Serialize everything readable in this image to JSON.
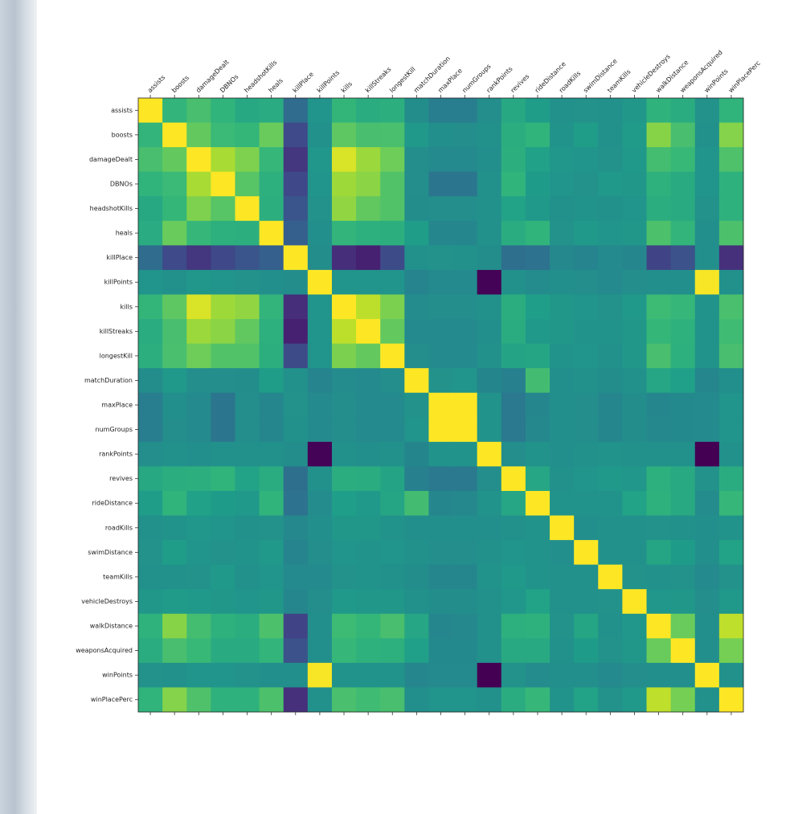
{
  "chart_data": {
    "type": "heatmap",
    "colormap": "viridis",
    "categories": [
      "assists",
      "boosts",
      "damageDealt",
      "DBNOs",
      "headshotKills",
      "heals",
      "killPlace",
      "killPoints",
      "kills",
      "killStreaks",
      "longestKill",
      "matchDuration",
      "maxPlace",
      "numGroups",
      "rankPoints",
      "revives",
      "rideDistance",
      "roadKills",
      "swimDistance",
      "teamKills",
      "vehicleDestroys",
      "walkDistance",
      "weaponsAcquired",
      "winPoints",
      "winPlacePerc"
    ],
    "values": [
      [
        1,
        0.31,
        0.41,
        0.3,
        0.2,
        0.23,
        -0.29,
        0.04,
        0.32,
        0.24,
        0.26,
        -0.02,
        -0.15,
        -0.14,
        -0.01,
        0.2,
        0.11,
        0.01,
        0.02,
        0.01,
        0.06,
        0.29,
        0.24,
        0.02,
        0.3
      ],
      [
        0.31,
        1,
        0.52,
        0.36,
        0.33,
        0.54,
        -0.55,
        0.01,
        0.5,
        0.41,
        0.42,
        0.07,
        0,
        -0.01,
        0.01,
        0.25,
        0.3,
        0.03,
        0.11,
        0.01,
        0.09,
        0.64,
        0.41,
        0.01,
        0.63
      ],
      [
        0.41,
        0.52,
        1,
        0.74,
        0.61,
        0.34,
        -0.68,
        0.05,
        0.89,
        0.7,
        0.56,
        -0.01,
        -0.04,
        -0.04,
        0,
        0.26,
        0.14,
        0.05,
        0.04,
        0.02,
        0.08,
        0.4,
        0.35,
        0.04,
        0.44
      ],
      [
        0.3,
        0.36,
        0.74,
        1,
        0.47,
        0.27,
        -0.56,
        0.04,
        0.71,
        0.65,
        0.45,
        -0.01,
        -0.22,
        -0.22,
        0.01,
        0.3,
        0.1,
        0.04,
        0.02,
        0.07,
        0.06,
        0.28,
        0.22,
        0.04,
        0.28
      ],
      [
        0.2,
        0.33,
        0.61,
        0.47,
        1,
        0.26,
        -0.47,
        0.02,
        0.67,
        0.51,
        0.45,
        -0.02,
        -0.01,
        -0.01,
        0.01,
        0.15,
        0.08,
        0.01,
        0.03,
        0.01,
        0.04,
        0.25,
        0.22,
        0.02,
        0.28
      ],
      [
        0.23,
        0.54,
        0.34,
        0.27,
        0.26,
        1,
        -0.39,
        0,
        0.31,
        0.27,
        0.26,
        0.11,
        -0.07,
        -0.07,
        0.01,
        0.24,
        0.3,
        0.02,
        0.08,
        0.04,
        0.06,
        0.43,
        0.31,
        0,
        0.43
      ],
      [
        -0.29,
        -0.55,
        -0.68,
        -0.56,
        -0.47,
        -0.39,
        1,
        -0.02,
        -0.73,
        -0.81,
        -0.54,
        0.01,
        0.02,
        0.01,
        -0.02,
        -0.27,
        -0.24,
        -0.06,
        -0.09,
        -0.04,
        -0.07,
        -0.59,
        -0.49,
        0,
        -0.72
      ],
      [
        0.04,
        0.01,
        0.05,
        0.04,
        0.02,
        0,
        -0.02,
        1,
        0.04,
        0.04,
        0.04,
        -0.09,
        -0.04,
        -0.04,
        -0.98,
        0.01,
        -0.03,
        0,
        -0.01,
        -0.04,
        -0.01,
        0,
        0,
        0.98,
        0.01
      ],
      [
        0.32,
        0.5,
        0.89,
        0.71,
        0.67,
        0.31,
        -0.73,
        0.04,
        1,
        0.8,
        0.6,
        -0.03,
        -0.01,
        -0.01,
        0.01,
        0.25,
        0.12,
        0.06,
        0.04,
        0.02,
        0.08,
        0.37,
        0.34,
        0.03,
        0.42
      ],
      [
        0.24,
        0.41,
        0.7,
        0.65,
        0.51,
        0.27,
        -0.81,
        0.04,
        0.8,
        1,
        0.52,
        -0.04,
        -0.04,
        -0.04,
        0,
        0.24,
        0.08,
        0.06,
        0.03,
        0.03,
        0.06,
        0.33,
        0.28,
        0.03,
        0.38
      ],
      [
        0.26,
        0.42,
        0.56,
        0.45,
        0.45,
        0.26,
        -0.54,
        0.04,
        0.6,
        0.52,
        1,
        -0.01,
        -0.04,
        -0.04,
        0.01,
        0.17,
        0.18,
        0.03,
        0.04,
        0.01,
        0.06,
        0.41,
        0.27,
        0.03,
        0.41
      ],
      [
        -0.02,
        0.07,
        -0.01,
        -0.01,
        -0.02,
        0.11,
        0.01,
        -0.09,
        -0.03,
        -0.04,
        -0.01,
        1,
        0.02,
        0.04,
        -0.08,
        -0.12,
        0.39,
        0,
        0.01,
        -0.02,
        0.01,
        0.19,
        0.13,
        -0.07,
        0
      ],
      [
        -0.15,
        0,
        -0.04,
        -0.22,
        -0.01,
        -0.07,
        0.02,
        -0.04,
        -0.01,
        -0.04,
        -0.04,
        0.02,
        1,
        1,
        0.03,
        -0.18,
        -0.07,
        0,
        -0.01,
        -0.07,
        -0.02,
        -0.07,
        -0.05,
        -0.04,
        0.04
      ],
      [
        -0.14,
        -0.01,
        -0.04,
        -0.22,
        -0.01,
        -0.07,
        0.01,
        -0.04,
        -0.01,
        -0.04,
        -0.04,
        0.04,
        1,
        1,
        0.03,
        -0.18,
        -0.06,
        0,
        -0.01,
        -0.07,
        -0.02,
        -0.06,
        -0.05,
        -0.04,
        0.04
      ],
      [
        -0.01,
        0.01,
        0,
        0.01,
        0.01,
        0.01,
        -0.02,
        -0.98,
        0.01,
        0,
        0.01,
        -0.08,
        0.03,
        0.03,
        1,
        -0.01,
        0.03,
        0,
        0.01,
        0.03,
        0.01,
        0.01,
        0.01,
        -0.99,
        0.01
      ],
      [
        0.2,
        0.25,
        0.26,
        0.3,
        0.15,
        0.24,
        -0.27,
        0.01,
        0.25,
        0.24,
        0.17,
        -0.12,
        -0.18,
        -0.18,
        -0.01,
        1,
        0.19,
        0.01,
        0.04,
        0.07,
        0.05,
        0.27,
        0.21,
        0.02,
        0.24
      ],
      [
        0.11,
        0.3,
        0.14,
        0.1,
        0.08,
        0.3,
        -0.24,
        -0.03,
        0.12,
        0.08,
        0.18,
        0.39,
        -0.07,
        -0.06,
        0.03,
        0.19,
        1,
        0.03,
        0.03,
        0.03,
        0.15,
        0.28,
        0.21,
        -0.03,
        0.34
      ],
      [
        0.01,
        0.03,
        0.05,
        0.04,
        0.01,
        0.02,
        -0.06,
        0,
        0.06,
        0.06,
        0.03,
        0,
        0,
        0,
        0,
        0.01,
        0.03,
        1,
        0,
        0.01,
        0.01,
        0.02,
        0.01,
        0,
        0.03
      ],
      [
        0.02,
        0.11,
        0.04,
        0.02,
        0.03,
        0.08,
        -0.09,
        -0.01,
        0.04,
        0.03,
        0.04,
        0.01,
        -0.01,
        -0.01,
        0.01,
        0.04,
        0.03,
        0,
        1,
        0.01,
        0.01,
        0.18,
        0.1,
        0,
        0.15
      ],
      [
        0.01,
        0.01,
        0.02,
        0.07,
        0.01,
        0.04,
        -0.04,
        -0.04,
        0.02,
        0.03,
        0.01,
        -0.02,
        -0.07,
        -0.07,
        0.03,
        0.07,
        0.03,
        0.01,
        0.01,
        1,
        0.02,
        0.01,
        0.02,
        -0.04,
        0.02
      ],
      [
        0.06,
        0.09,
        0.08,
        0.06,
        0.04,
        0.06,
        -0.07,
        -0.01,
        0.08,
        0.06,
        0.06,
        0.01,
        -0.02,
        -0.02,
        0.01,
        0.05,
        0.15,
        0.01,
        0.01,
        0.02,
        1,
        0.05,
        0.06,
        -0.01,
        0.07
      ],
      [
        0.29,
        0.64,
        0.4,
        0.28,
        0.25,
        0.43,
        -0.59,
        0,
        0.37,
        0.33,
        0.41,
        0.19,
        -0.07,
        -0.06,
        0.01,
        0.27,
        0.28,
        0.02,
        0.18,
        0.01,
        0.05,
        1,
        0.54,
        0,
        0.81
      ],
      [
        0.24,
        0.41,
        0.35,
        0.22,
        0.22,
        0.31,
        -0.49,
        0,
        0.34,
        0.28,
        0.27,
        0.13,
        -0.05,
        -0.05,
        0.01,
        0.21,
        0.21,
        0.01,
        0.1,
        0.02,
        0.06,
        0.54,
        1,
        0,
        0.58
      ],
      [
        0.02,
        0.01,
        0.04,
        0.04,
        0.02,
        0,
        0,
        0.98,
        0.03,
        0.03,
        0.03,
        -0.07,
        -0.04,
        -0.04,
        -0.99,
        0.02,
        -0.03,
        0,
        0,
        -0.04,
        -0.01,
        0,
        0,
        1,
        0.01
      ],
      [
        0.3,
        0.63,
        0.44,
        0.28,
        0.28,
        0.43,
        -0.72,
        0.01,
        0.42,
        0.38,
        0.41,
        0,
        0.04,
        0.04,
        0.01,
        0.24,
        0.34,
        0.03,
        0.15,
        0.02,
        0.07,
        0.81,
        0.58,
        0.01,
        1
      ]
    ]
  }
}
